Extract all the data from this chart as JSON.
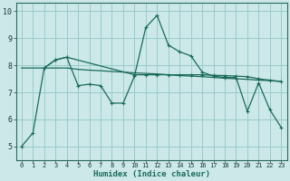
{
  "xlabel": "Humidex (Indice chaleur)",
  "bg_color": "#cce8e8",
  "grid_color": "#99cccc",
  "line_color": "#1a6b5a",
  "xlim": [
    -0.5,
    23.5
  ],
  "ylim": [
    4.5,
    10.3
  ],
  "xticks": [
    0,
    1,
    2,
    3,
    4,
    5,
    6,
    7,
    8,
    9,
    10,
    11,
    12,
    13,
    14,
    15,
    16,
    17,
    18,
    19,
    20,
    21,
    22,
    23
  ],
  "yticks": [
    5,
    6,
    7,
    8,
    9,
    10
  ],
  "line1_x": [
    0,
    1,
    2,
    3,
    4,
    5,
    6,
    7,
    8,
    9,
    10,
    11,
    12,
    13,
    14,
    15,
    16,
    17,
    18,
    19,
    20,
    21,
    22,
    23
  ],
  "line1_y": [
    5.0,
    5.5,
    7.9,
    8.2,
    8.3,
    7.25,
    7.3,
    7.25,
    6.6,
    6.6,
    7.6,
    9.4,
    9.85,
    8.75,
    8.5,
    8.35,
    7.75,
    7.6,
    7.55,
    7.55,
    6.3,
    7.35,
    6.35,
    5.7
  ],
  "line2_x": [
    2,
    3,
    4,
    10,
    11,
    12,
    13,
    14,
    15,
    16,
    17,
    18,
    19,
    20,
    21,
    22,
    23
  ],
  "line2_y": [
    7.9,
    8.2,
    8.3,
    7.65,
    7.65,
    7.65,
    7.65,
    7.65,
    7.65,
    7.65,
    7.63,
    7.62,
    7.6,
    7.58,
    7.5,
    7.45,
    7.4
  ],
  "line3_x": [
    0,
    1,
    2,
    3,
    4,
    5,
    6,
    7,
    8,
    9,
    10,
    11,
    12,
    13,
    14,
    15,
    16,
    17,
    18,
    19,
    20,
    21,
    22,
    23
  ],
  "line3_y": [
    7.9,
    7.9,
    7.9,
    7.9,
    7.9,
    7.85,
    7.82,
    7.8,
    7.77,
    7.75,
    7.72,
    7.7,
    7.68,
    7.65,
    7.62,
    7.6,
    7.58,
    7.55,
    7.52,
    7.5,
    7.48,
    7.45,
    7.43,
    7.4
  ]
}
